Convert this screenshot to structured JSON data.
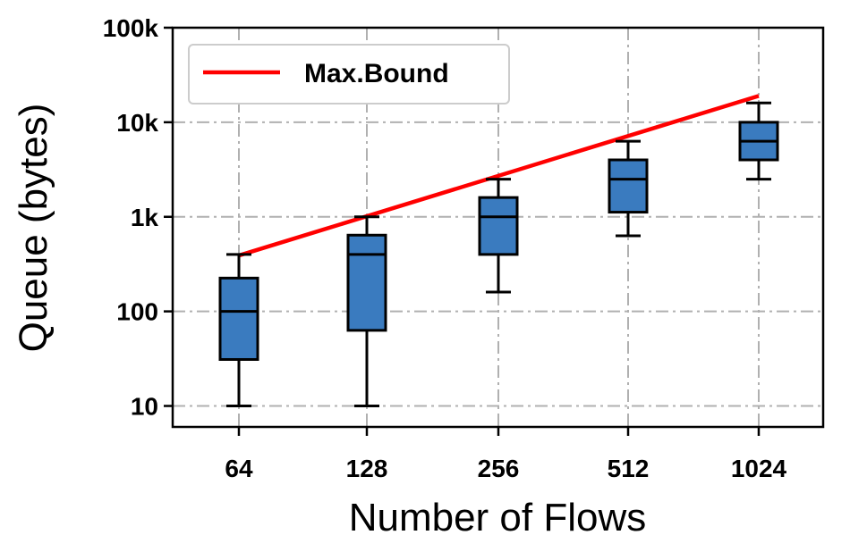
{
  "chart_data": {
    "type": "box",
    "title": "",
    "xlabel": "Number of Flows",
    "ylabel": "Queue (bytes)",
    "yscale": "log",
    "ylim": [
      6,
      100000
    ],
    "grid": true,
    "legend_position": "top-left",
    "categories": [
      "64",
      "128",
      "256",
      "512",
      "1024"
    ],
    "yticks": [
      10,
      100,
      1000,
      10000,
      100000
    ],
    "ytick_labels": [
      "10",
      "100",
      "1k",
      "10k",
      "100k"
    ],
    "boxes": [
      {
        "category": "64",
        "whisker_low": 10,
        "q1": 31,
        "median": 100,
        "q3": 225,
        "whisker_high": 400
      },
      {
        "category": "128",
        "whisker_low": 10,
        "q1": 63,
        "median": 400,
        "q3": 640,
        "whisker_high": 1000
      },
      {
        "category": "256",
        "whisker_low": 160,
        "q1": 400,
        "median": 1000,
        "q3": 1600,
        "whisker_high": 2500
      },
      {
        "category": "512",
        "whisker_low": 630,
        "q1": 1120,
        "median": 2500,
        "q3": 4000,
        "whisker_high": 6300
      },
      {
        "category": "1024",
        "whisker_low": 2500,
        "q1": 4000,
        "median": 6300,
        "q3": 10000,
        "whisker_high": 16000
      }
    ],
    "series": [
      {
        "name": "Max.Bound",
        "type": "line",
        "color": "#ff0000",
        "x": [
          "64",
          "1024"
        ],
        "values": [
          390,
          19000
        ]
      }
    ],
    "colors": {
      "box_fill": "#3a7bbf",
      "bound_line": "#ff0000",
      "grid": "#b0b0b0"
    }
  }
}
